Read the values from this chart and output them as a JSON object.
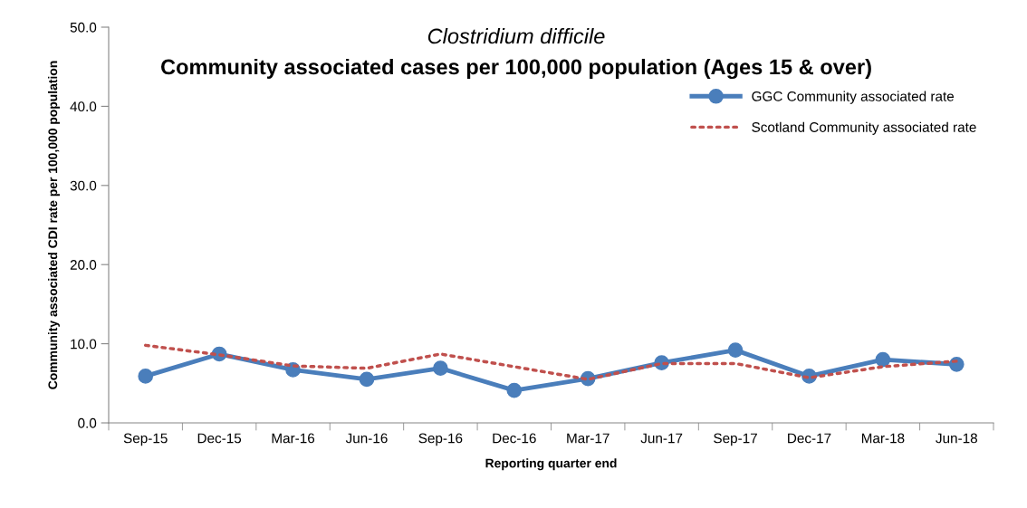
{
  "chart_data": {
    "type": "line",
    "title": "Clostridium difficile",
    "subtitle": "Community associated cases per 100,000 population (Ages 15 & over)",
    "xlabel": "Reporting quarter end",
    "ylabel": "Community associated CDI rate per 100,000 population",
    "categories": [
      "Sep-15",
      "Dec-15",
      "Mar-16",
      "Jun-16",
      "Sep-16",
      "Dec-16",
      "Mar-17",
      "Jun-17",
      "Sep-17",
      "Dec-17",
      "Mar-18",
      "Jun-18"
    ],
    "series": [
      {
        "name": "GGC Community associated rate",
        "color": "#4a7ebb",
        "marker": "circle",
        "line_style": "solid",
        "values": [
          5.9,
          8.7,
          6.7,
          5.5,
          6.9,
          4.1,
          5.6,
          7.6,
          9.2,
          5.9,
          8.0,
          7.4
        ]
      },
      {
        "name": "Scotland Community associated rate",
        "color": "#c0504d",
        "marker": "none",
        "line_style": "dotted",
        "values": [
          9.8,
          8.6,
          7.2,
          6.9,
          8.7,
          7.1,
          5.5,
          7.5,
          7.5,
          5.7,
          7.1,
          7.8
        ]
      }
    ],
    "ylim": [
      0,
      50
    ],
    "yticks": [
      {
        "value": 0,
        "label": "0.0"
      },
      {
        "value": 10,
        "label": "10.0"
      },
      {
        "value": 20,
        "label": "20.0"
      },
      {
        "value": 30,
        "label": "30.0"
      },
      {
        "value": 40,
        "label": "40.0"
      },
      {
        "value": 50,
        "label": "50.0"
      }
    ],
    "grid": false,
    "legend": "top right"
  }
}
